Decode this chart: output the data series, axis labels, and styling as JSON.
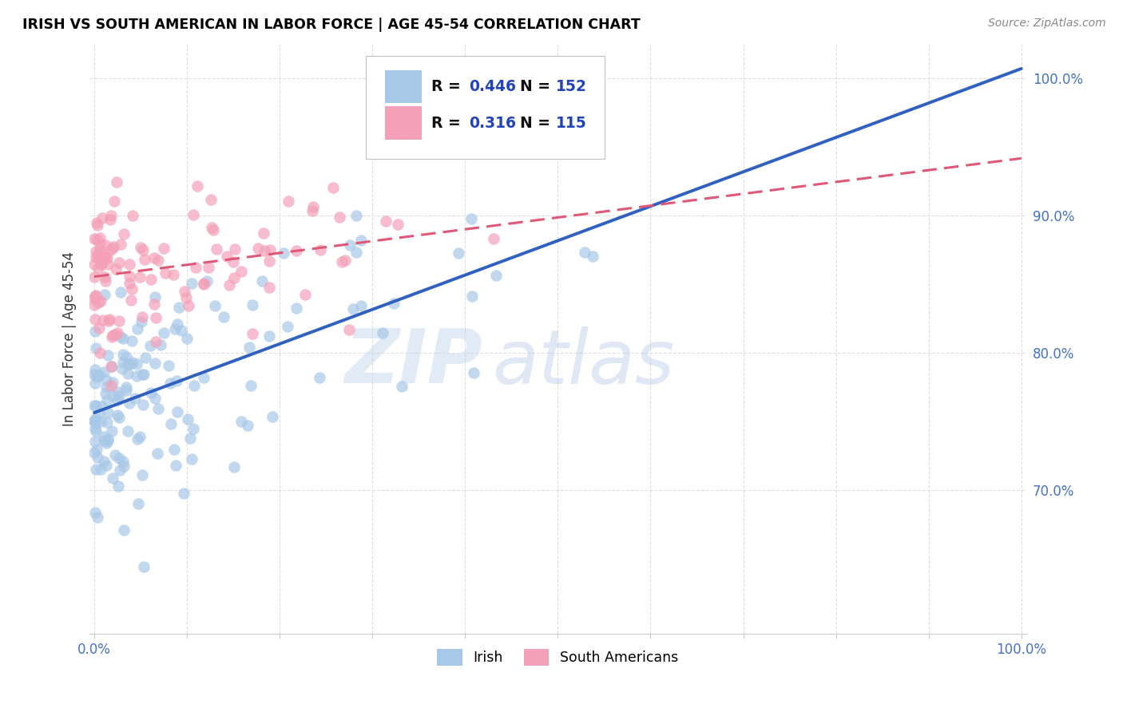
{
  "title": "IRISH VS SOUTH AMERICAN IN LABOR FORCE | AGE 45-54 CORRELATION CHART",
  "source": "Source: ZipAtlas.com",
  "ylabel": "In Labor Force | Age 45-54",
  "watermark_zip": "ZIP",
  "watermark_atlas": "atlas",
  "irish_R": 0.446,
  "irish_N": 152,
  "south_R": 0.316,
  "south_N": 115,
  "irish_color": "#a8c8e8",
  "south_color": "#f4a0b8",
  "irish_line_color": "#3060c0",
  "south_line_color": "#e05878",
  "tick_color": "#4472c4",
  "legend_R_color": "#2244bb",
  "legend_N_color": "#2244bb",
  "ylim_low": 0.595,
  "ylim_high": 1.025,
  "xlim_low": -0.005,
  "xlim_high": 1.005
}
